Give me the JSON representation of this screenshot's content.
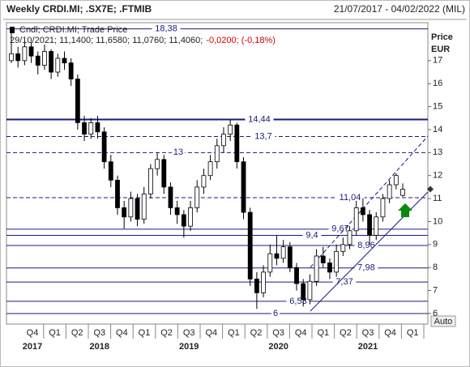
{
  "chart_data": {
    "type": "candlestick",
    "title": "Weekly CRDI.MI; .SX7E; .FTMIB",
    "date_range": "21/07/2017 - 04/02/2022 (MIL)",
    "legend": "Cndl; CRDI.MI; Trade Price",
    "info": "29/10/2021; 11,1400; 11,6580; 11,0760; 11,4060;",
    "change": "-0,0200; (-0,18%)",
    "y_label": "Price",
    "y_unit": "EUR",
    "button": "Auto",
    "ylim": [
      5.54,
      18.58
    ],
    "yticks": [
      6,
      7,
      8,
      9,
      10,
      11,
      12,
      13,
      14,
      15,
      16,
      17
    ],
    "quarters": [
      "Q4",
      "Q1",
      "Q2",
      "Q3",
      "Q4",
      "Q1",
      "Q2",
      "Q3",
      "Q4",
      "Q1",
      "Q2",
      "Q3",
      "Q4",
      "Q1",
      "Q2",
      "Q3",
      "Q4",
      "Q1"
    ],
    "years": [
      "2017",
      null,
      null,
      "2018",
      null,
      null,
      null,
      "2019",
      null,
      null,
      null,
      "2020",
      null,
      null,
      null,
      "2021",
      null,
      null
    ],
    "levels": [
      {
        "value": 18.38,
        "label": "18,38",
        "dashed": false
      },
      {
        "value": 14.44,
        "label": "14,44",
        "dashed": false
      },
      {
        "value": 13.7,
        "label": "13,7",
        "dashed": true
      },
      {
        "value": 13,
        "dashed": true
      },
      {
        "value": 11.04,
        "label": "11,04",
        "dashed": true
      },
      {
        "value": 9.67,
        "label": "9,67",
        "dashed": false
      },
      {
        "value": 9.4,
        "label": "9,4",
        "dashed": false
      },
      {
        "value": 8.96,
        "label": "8,96",
        "dashed": false
      },
      {
        "value": 7.98,
        "label": "7,98",
        "dashed": false
      },
      {
        "value": 7.37,
        "label": "7,37",
        "dashed": false
      },
      {
        "value": 6.53,
        "label": "6,53",
        "dashed": false
      },
      {
        "value": 6,
        "dashed": false
      }
    ],
    "level_color": "#1a1a80",
    "up_color": "#ffffff",
    "down_color": "#000000",
    "open": [
      17.0,
      17.3,
      17.0,
      17.6,
      17.2,
      16.8,
      17.4,
      16.5,
      17.1,
      16.9,
      16.2,
      14.3,
      13.8,
      14.3,
      13.9,
      12.6,
      11.8,
      10.6,
      10.2,
      11.0,
      10.1,
      11.2,
      12.3,
      12.7,
      11.5,
      10.6,
      10.3,
      9.8,
      10.6,
      11.5,
      12.0,
      12.6,
      13.3,
      13.8,
      14.2,
      12.6,
      10.4,
      7.5,
      6.9,
      7.8,
      8.6,
      8.4,
      8.9,
      8.0,
      7.3,
      6.6,
      7.4,
      8.5,
      8.2,
      7.8,
      8.7,
      9.0,
      9.6,
      10.6,
      10.3,
      9.4,
      10.2,
      11.0,
      11.6,
      11.14
    ],
    "high": [
      18.38,
      17.6,
      17.9,
      17.8,
      17.4,
      17.7,
      17.5,
      17.3,
      17.4,
      17.1,
      16.4,
      14.6,
      14.5,
      14.6,
      14.1,
      12.9,
      12.0,
      10.9,
      11.3,
      11.2,
      11.5,
      12.5,
      13.0,
      12.9,
      11.7,
      10.9,
      10.5,
      10.9,
      11.8,
      12.3,
      12.9,
      13.6,
      14.1,
      14.44,
      14.3,
      12.8,
      10.6,
      7.8,
      8.1,
      9.0,
      9.4,
      9.2,
      9.1,
      8.2,
      7.5,
      7.7,
      8.8,
      8.9,
      8.4,
      9.0,
      9.3,
      9.8,
      10.9,
      11.0,
      10.5,
      10.4,
      11.2,
      11.8,
      12.1,
      11.658
    ],
    "low": [
      16.9,
      16.7,
      16.8,
      16.9,
      16.4,
      16.6,
      16.2,
      16.3,
      16.6,
      15.9,
      14.0,
      13.5,
      13.6,
      13.6,
      12.3,
      11.5,
      10.3,
      9.7,
      10.0,
      9.8,
      9.9,
      11.0,
      12.0,
      11.2,
      10.3,
      9.9,
      9.3,
      9.6,
      10.4,
      11.2,
      11.8,
      12.3,
      13.0,
      13.5,
      12.3,
      10.1,
      7.2,
      6.2,
      6.7,
      7.6,
      8.1,
      8.2,
      7.8,
      7.0,
      6.3,
      6.4,
      7.2,
      8.0,
      7.5,
      7.6,
      8.5,
      8.8,
      9.4,
      10.0,
      9.0,
      9.2,
      10.0,
      10.8,
      11.4,
      11.076
    ],
    "close": [
      17.3,
      17.0,
      17.6,
      17.2,
      16.8,
      17.4,
      16.5,
      17.1,
      16.9,
      16.2,
      14.3,
      13.8,
      14.3,
      13.9,
      12.6,
      11.8,
      10.6,
      10.2,
      11.0,
      10.1,
      11.2,
      12.3,
      12.7,
      11.5,
      10.6,
      10.3,
      9.8,
      10.6,
      11.5,
      12.0,
      12.6,
      13.3,
      13.8,
      14.2,
      12.6,
      10.4,
      7.5,
      6.9,
      7.8,
      8.6,
      8.4,
      8.9,
      8.0,
      7.3,
      6.6,
      7.4,
      8.5,
      8.2,
      7.8,
      8.7,
      9.0,
      9.6,
      10.6,
      10.3,
      9.4,
      10.2,
      11.0,
      11.6,
      12.0,
      11.406
    ]
  }
}
